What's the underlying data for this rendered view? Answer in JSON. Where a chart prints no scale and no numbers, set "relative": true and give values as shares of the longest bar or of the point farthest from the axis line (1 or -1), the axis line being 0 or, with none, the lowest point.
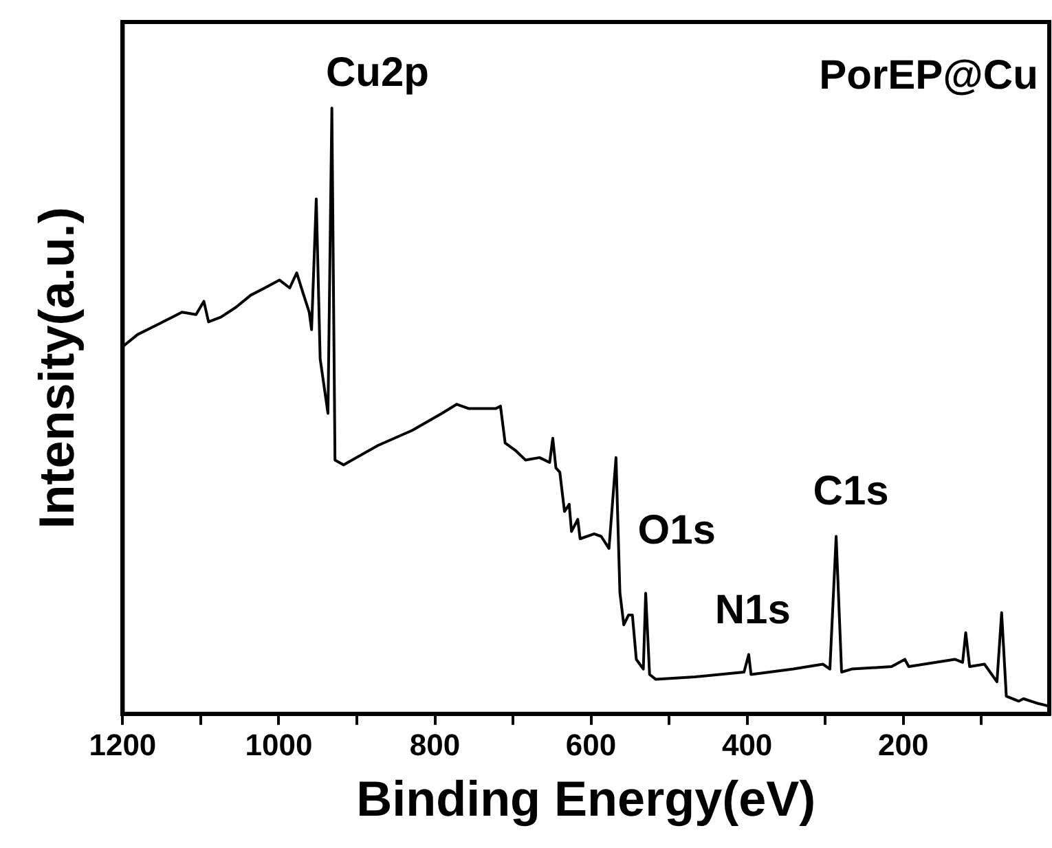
{
  "chart_data": {
    "type": "line",
    "relative": true,
    "xlabel": "Binding Energy(eV)",
    "ylabel": "Intensity(a.u.)",
    "xlim": [
      1200,
      13
    ],
    "xticks": [
      1200,
      {
        "value": 1100,
        "label": null
      },
      1000,
      {
        "value": 900,
        "label": null
      },
      800,
      {
        "value": 700,
        "label": null
      },
      600,
      {
        "value": 500,
        "label": null
      },
      400,
      {
        "value": 300,
        "label": null
      },
      200,
      {
        "value": 100,
        "label": null
      }
    ],
    "grid": false,
    "legend": false,
    "marker": "none",
    "line_style": "solid",
    "series": [
      {
        "color": "#000000",
        "x": [
          1200,
          1181,
          1156,
          1124,
          1106,
          1096,
          1090,
          1074,
          1055,
          1036,
          1018,
          999,
          986,
          977,
          970,
          961,
          958,
          952,
          947,
          937,
          932,
          928,
          917,
          873,
          829,
          791,
          772,
          757,
          722,
          716,
          710,
          697,
          684,
          666,
          653,
          649,
          645,
          640,
          634,
          628,
          625,
          617,
          614,
          596,
          587,
          577,
          568,
          563,
          558,
          552,
          547,
          542,
          533,
          530,
          525,
          517,
          467,
          404,
          398,
          395,
          341,
          303,
          294,
          286,
          279,
          266,
          215,
          198,
          193,
          134,
          124,
          120,
          115,
          96,
          80,
          74,
          68,
          52,
          46,
          27,
          14
        ],
        "values": [
          0.606,
          0.626,
          0.642,
          0.663,
          0.659,
          0.681,
          0.647,
          0.655,
          0.671,
          0.691,
          0.703,
          0.716,
          0.703,
          0.728,
          0.699,
          0.663,
          0.634,
          0.85,
          0.586,
          0.496,
          1,
          0.419,
          0.411,
          0.443,
          0.468,
          0.496,
          0.511,
          0.504,
          0.504,
          0.508,
          0.447,
          0.435,
          0.419,
          0.423,
          0.415,
          0.455,
          0.406,
          0.399,
          0.334,
          0.346,
          0.301,
          0.321,
          0.289,
          0.297,
          0.293,
          0.273,
          0.423,
          0.2,
          0.147,
          0.163,
          0.163,
          0.09,
          0.074,
          0.199,
          0.065,
          0.057,
          0.061,
          0.069,
          0.098,
          0.065,
          0.074,
          0.082,
          0.074,
          0.293,
          0.069,
          0.074,
          0.078,
          0.09,
          0.078,
          0.09,
          0.085,
          0.134,
          0.078,
          0.082,
          0.053,
          0.167,
          0.029,
          0.021,
          0.025,
          0.017,
          0.013
        ]
      }
    ],
    "annotations": [
      "PorEP@Cu",
      "Cu2p",
      "O1s",
      "N1s",
      "C1s"
    ]
  }
}
